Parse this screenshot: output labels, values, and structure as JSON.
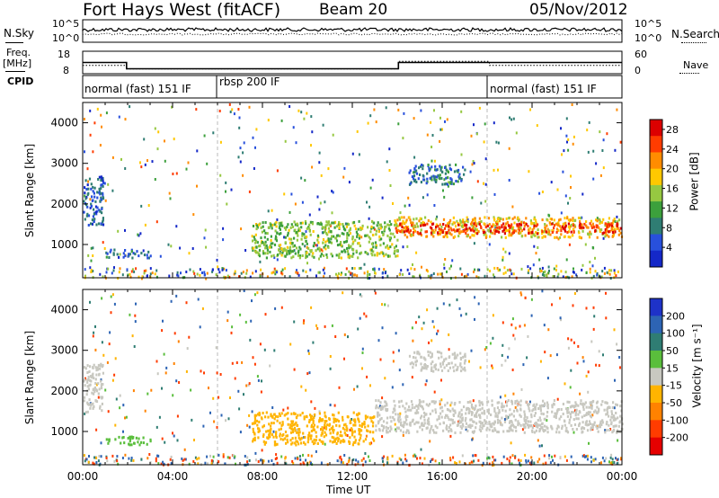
{
  "header": {
    "station": "Fort Hays West (fitACF)",
    "beam": "Beam 20",
    "date": "05/Nov/2012"
  },
  "top_panels": {
    "nsky_label": "N.Sky",
    "nsky_ticks": [
      "10^5",
      "10^0"
    ],
    "nsearch_label": "N.Search",
    "nsearch_ticks": [
      "10^5",
      "10^0"
    ],
    "freq_label": "Freq.",
    "freq_unit": "[MHz]",
    "freq_ticks": [
      "18",
      "8"
    ],
    "nave_label": "Nave",
    "nave_ticks": [
      "60",
      "0"
    ],
    "cpid_label": "CPID",
    "cpid_segments": [
      {
        "label": "normal (fast) 151 IF",
        "start": 0,
        "end": 6
      },
      {
        "label": "rbsp 200 IF",
        "start": 6,
        "end": 18
      },
      {
        "label": "normal (fast) 151 IF",
        "start": 18,
        "end": 24
      }
    ]
  },
  "chart_data": [
    {
      "type": "line",
      "panel": "freq-nave",
      "series": [
        {
          "name": "Freq.",
          "x": [
            0,
            1.95,
            1.95,
            14.05,
            14.05,
            24
          ],
          "values": [
            13,
            13,
            10.2,
            10.2,
            13,
            13
          ]
        },
        {
          "name": "Nave",
          "x": [
            0,
            1.95,
            1.95,
            14.05,
            14.05,
            18.1,
            18.1,
            24
          ],
          "values": [
            22,
            22,
            13,
            13,
            33,
            33,
            22,
            22
          ]
        }
      ],
      "xlim": [
        0,
        24
      ],
      "ylim_left": [
        8,
        18
      ],
      "ylim_right": [
        0,
        60
      ]
    },
    {
      "type": "heatmap",
      "panel": "power",
      "ylabel": "Slant Range [km]",
      "yticks": [
        1000,
        2000,
        3000,
        4000
      ],
      "ylim": [
        180,
        4500
      ],
      "xlim": [
        0,
        24
      ],
      "colorbar_label": "Power [dB]",
      "colorbar_ticks": [
        28,
        24,
        20,
        16,
        12,
        8,
        4
      ],
      "colorbar_range": [
        0,
        30
      ],
      "colors": [
        "#1428c8",
        "#2850dc",
        "#2f7d73",
        "#3ca03c",
        "#96c841",
        "#ffc800",
        "#ff8c00",
        "#ff3c00",
        "#dc0000"
      ],
      "features": [
        {
          "x": [
            0,
            0.9
          ],
          "y": [
            1500,
            2700
          ],
          "value": 6
        },
        {
          "x": [
            1.0,
            3.0
          ],
          "y": [
            700,
            900
          ],
          "value": 7
        },
        {
          "x": [
            7.5,
            14.0
          ],
          "y": [
            700,
            1600
          ],
          "value": 14
        },
        {
          "x": [
            13.8,
            24
          ],
          "y": [
            1200,
            1700
          ],
          "value": 19
        },
        {
          "x": [
            13.8,
            24
          ],
          "y": [
            1300,
            1550
          ],
          "value": 26
        },
        {
          "x": [
            14.5,
            17.0
          ],
          "y": [
            2500,
            3000
          ],
          "value": 8
        }
      ]
    },
    {
      "type": "heatmap",
      "panel": "velocity",
      "ylabel": "Slant Range [km]",
      "yticks": [
        1000,
        2000,
        3000,
        4000
      ],
      "ylim": [
        180,
        4500
      ],
      "xlim": [
        0,
        24
      ],
      "xticks": [
        "00:00",
        "04:00",
        "08:00",
        "12:00",
        "16:00",
        "20:00",
        "00:00"
      ],
      "xlabel": "Time UT",
      "colorbar_label": "Velocity [m s⁻¹]",
      "colorbar_ticks": [
        200,
        100,
        50,
        15,
        -15,
        -50,
        -100,
        -200
      ],
      "colors": [
        "#1e32c8",
        "#2d64b4",
        "#2f7d73",
        "#5abe3c",
        "#c8c8c0",
        "#ffb400",
        "#ff8200",
        "#ff3c00",
        "#e60000"
      ],
      "features": [
        {
          "x": [
            0,
            0.9
          ],
          "y": [
            1500,
            2700
          ],
          "value": 0
        },
        {
          "x": [
            1.0,
            3.0
          ],
          "y": [
            700,
            900
          ],
          "value": 40
        },
        {
          "x": [
            7.5,
            13.0
          ],
          "y": [
            700,
            1500
          ],
          "value": -40
        },
        {
          "x": [
            13.0,
            24
          ],
          "y": [
            1000,
            1800
          ],
          "value": 0
        },
        {
          "x": [
            14.5,
            17.0
          ],
          "y": [
            2500,
            3000
          ],
          "value": 0
        }
      ]
    }
  ],
  "colors": {
    "power_bar": "power gradient",
    "velocity_bar": "velocity bands"
  },
  "time_axis": {
    "label": "Time UT",
    "ticks": [
      "00:00",
      "04:00",
      "08:00",
      "12:00",
      "16:00",
      "20:00",
      "00:00"
    ]
  }
}
